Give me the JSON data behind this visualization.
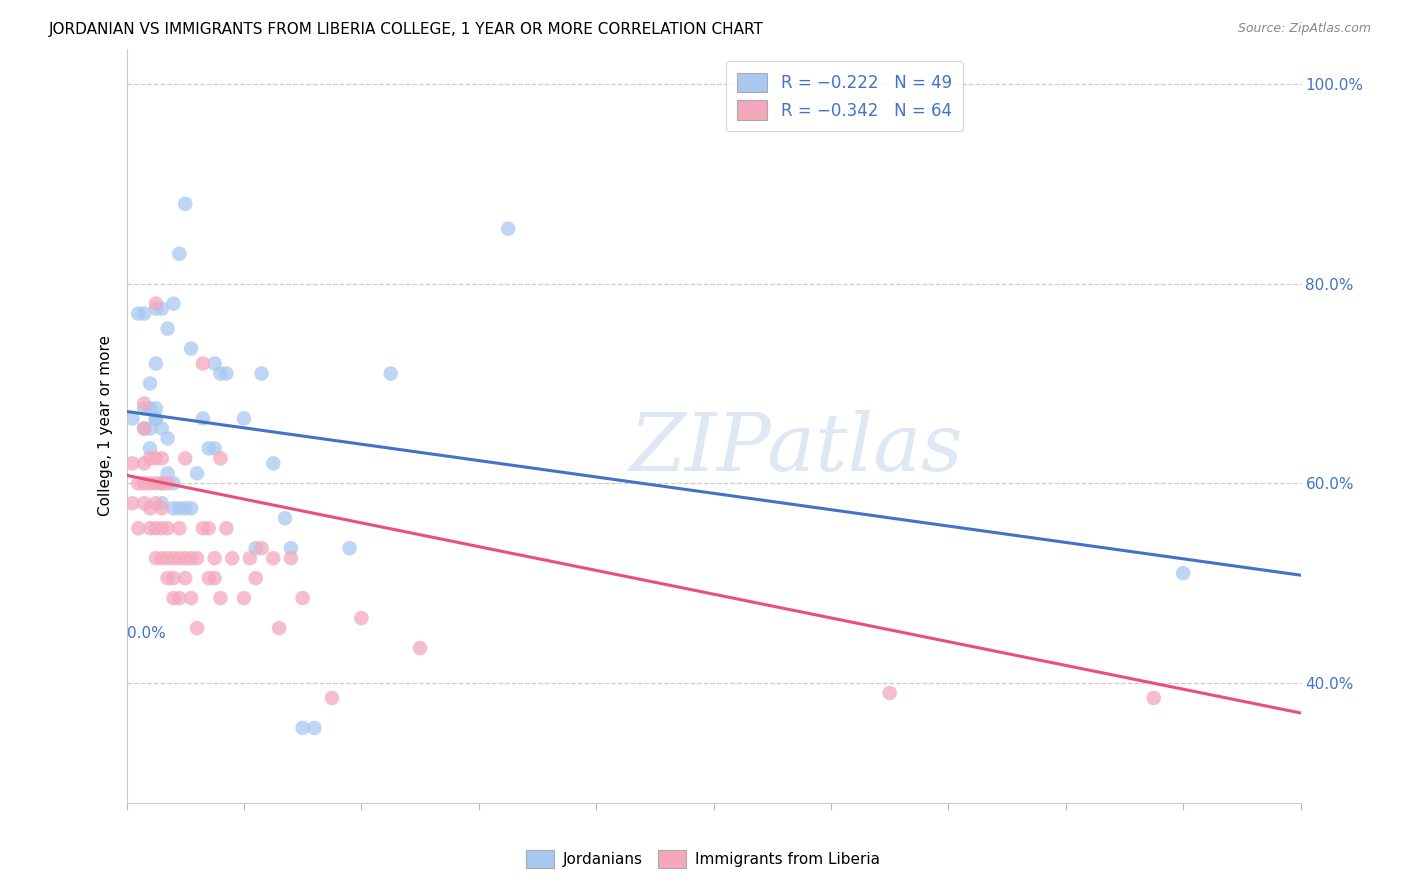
{
  "title": "JORDANIAN VS IMMIGRANTS FROM LIBERIA COLLEGE, 1 YEAR OR MORE CORRELATION CHART",
  "source": "Source: ZipAtlas.com",
  "ylabel": "College, 1 year or more",
  "right_yticks": [
    "40.0%",
    "60.0%",
    "80.0%",
    "100.0%"
  ],
  "right_ytick_vals": [
    0.4,
    0.6,
    0.8,
    1.0
  ],
  "blue_color": "#A8C8F0",
  "pink_color": "#F4A8BC",
  "blue_line_color": "#4472C4",
  "pink_line_color": "#E8507A",
  "blue_text_color": "#4472C4",
  "watermark": "ZIPatlas",
  "jordanian_x": [
    0.001,
    0.002,
    0.003,
    0.003,
    0.003,
    0.004,
    0.004,
    0.004,
    0.004,
    0.005,
    0.005,
    0.005,
    0.005,
    0.005,
    0.006,
    0.006,
    0.006,
    0.006,
    0.007,
    0.007,
    0.007,
    0.008,
    0.008,
    0.008,
    0.009,
    0.009,
    0.01,
    0.01,
    0.011,
    0.011,
    0.012,
    0.013,
    0.014,
    0.015,
    0.015,
    0.016,
    0.017,
    0.02,
    0.022,
    0.023,
    0.025,
    0.027,
    0.028,
    0.03,
    0.032,
    0.038,
    0.045,
    0.065,
    0.18
  ],
  "jordanian_y": [
    0.665,
    0.77,
    0.77,
    0.655,
    0.675,
    0.675,
    0.635,
    0.655,
    0.7,
    0.665,
    0.665,
    0.675,
    0.72,
    0.775,
    0.58,
    0.6,
    0.655,
    0.775,
    0.61,
    0.645,
    0.755,
    0.575,
    0.6,
    0.78,
    0.575,
    0.83,
    0.575,
    0.88,
    0.575,
    0.735,
    0.61,
    0.665,
    0.635,
    0.635,
    0.72,
    0.71,
    0.71,
    0.665,
    0.535,
    0.71,
    0.62,
    0.565,
    0.535,
    0.355,
    0.355,
    0.535,
    0.71,
    0.855,
    0.51
  ],
  "liberia_x": [
    0.001,
    0.001,
    0.002,
    0.002,
    0.003,
    0.003,
    0.003,
    0.003,
    0.003,
    0.004,
    0.004,
    0.004,
    0.004,
    0.005,
    0.005,
    0.005,
    0.005,
    0.005,
    0.005,
    0.006,
    0.006,
    0.006,
    0.006,
    0.006,
    0.007,
    0.007,
    0.007,
    0.007,
    0.008,
    0.008,
    0.008,
    0.009,
    0.009,
    0.009,
    0.01,
    0.01,
    0.01,
    0.011,
    0.011,
    0.012,
    0.012,
    0.013,
    0.013,
    0.014,
    0.014,
    0.015,
    0.015,
    0.016,
    0.016,
    0.017,
    0.018,
    0.02,
    0.021,
    0.022,
    0.023,
    0.025,
    0.026,
    0.028,
    0.03,
    0.035,
    0.04,
    0.05,
    0.13,
    0.175
  ],
  "liberia_y": [
    0.58,
    0.62,
    0.555,
    0.6,
    0.58,
    0.6,
    0.62,
    0.655,
    0.68,
    0.555,
    0.575,
    0.6,
    0.625,
    0.525,
    0.555,
    0.58,
    0.6,
    0.625,
    0.78,
    0.525,
    0.555,
    0.575,
    0.6,
    0.625,
    0.505,
    0.525,
    0.555,
    0.6,
    0.485,
    0.505,
    0.525,
    0.485,
    0.525,
    0.555,
    0.505,
    0.525,
    0.625,
    0.485,
    0.525,
    0.455,
    0.525,
    0.555,
    0.72,
    0.505,
    0.555,
    0.505,
    0.525,
    0.485,
    0.625,
    0.555,
    0.525,
    0.485,
    0.525,
    0.505,
    0.535,
    0.525,
    0.455,
    0.525,
    0.485,
    0.385,
    0.465,
    0.435,
    0.39,
    0.385
  ],
  "xmin": 0.0,
  "xmax": 0.2,
  "ymin": 0.28,
  "ymax": 1.035,
  "blue_trend_x": [
    0.0,
    0.2
  ],
  "blue_trend_y": [
    0.672,
    0.508
  ],
  "pink_trend_x": [
    0.0,
    0.2
  ],
  "pink_trend_y": [
    0.608,
    0.37
  ]
}
